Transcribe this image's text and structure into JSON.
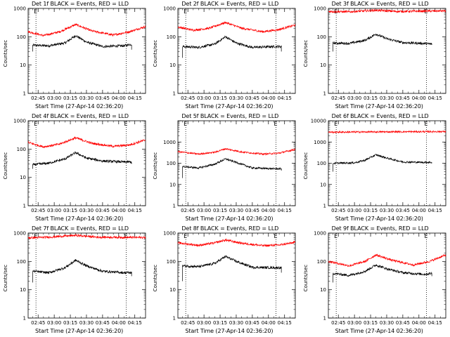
{
  "x_tick_labels": [
    "02:45",
    "03:00",
    "03:15",
    "03:30",
    "03:45",
    "04:00",
    "04:15"
  ],
  "xlabel": "Start Time (27-Apr-14 02:36:20)",
  "ylabel": "Counts/sec",
  "marker_label": "E",
  "colors": {
    "events": "#000000",
    "lld": "#ff0000",
    "background": "#ffffff"
  },
  "chart_data": [
    {
      "type": "line",
      "title": "Det 1f BLACK = Events, RED = LLD",
      "yscale": "log",
      "ylim": [
        1,
        1000
      ],
      "y_tick_labels": [
        "1",
        "10",
        "100",
        "1000"
      ],
      "xlim_min": [
        -9.3,
        100
      ],
      "event_markers_min": [
        -2,
        82
      ],
      "series": [
        {
          "name": "Events",
          "color": "#000000",
          "x_range_min": [
            -5,
            87
          ],
          "start_drop": 30,
          "end_drop": 35,
          "profile": [
            [
              -5,
              50
            ],
            [
              10,
              48
            ],
            [
              25,
              60
            ],
            [
              35,
              110
            ],
            [
              45,
              65
            ],
            [
              60,
              45
            ],
            [
              80,
              48
            ],
            [
              87,
              55
            ]
          ]
        },
        {
          "name": "LLD",
          "color": "#ff0000",
          "x_range_min": [
            -9.3,
            100
          ],
          "profile": [
            [
              -9,
              150
            ],
            [
              5,
              110
            ],
            [
              20,
              150
            ],
            [
              35,
              270
            ],
            [
              50,
              160
            ],
            [
              70,
              115
            ],
            [
              85,
              150
            ],
            [
              100,
              230
            ]
          ]
        }
      ]
    },
    {
      "type": "line",
      "title": "Det 2f BLACK = Events, RED = LLD",
      "yscale": "log",
      "ylim": [
        1,
        1000
      ],
      "y_tick_labels": [
        "1",
        "10",
        "100",
        "1000"
      ],
      "xlim_min": [
        -9.3,
        100
      ],
      "event_markers_min": [
        -2,
        82
      ],
      "series": [
        {
          "name": "Events",
          "color": "#000000",
          "x_range_min": [
            -5,
            87
          ],
          "start_drop": 18,
          "end_drop": 30,
          "profile": [
            [
              -5,
              45
            ],
            [
              10,
              42
            ],
            [
              25,
              55
            ],
            [
              35,
              100
            ],
            [
              45,
              60
            ],
            [
              60,
              42
            ],
            [
              80,
              45
            ],
            [
              87,
              45
            ]
          ]
        },
        {
          "name": "LLD",
          "color": "#ff0000",
          "x_range_min": [
            -9.3,
            100
          ],
          "profile": [
            [
              -9,
              220
            ],
            [
              5,
              170
            ],
            [
              20,
              200
            ],
            [
              35,
              320
            ],
            [
              50,
              200
            ],
            [
              70,
              150
            ],
            [
              85,
              180
            ],
            [
              100,
              260
            ]
          ]
        }
      ]
    },
    {
      "type": "line",
      "title": "Det 3f BLACK = Events, RED = LLD",
      "yscale": "log",
      "ylim": [
        1,
        1000
      ],
      "y_tick_labels": [
        "1",
        "10",
        "100",
        "1000"
      ],
      "xlim_min": [
        -9.3,
        100
      ],
      "event_markers_min": [
        -2,
        82
      ],
      "series": [
        {
          "name": "Events",
          "color": "#000000",
          "x_range_min": [
            -5,
            87
          ],
          "start_drop": 30,
          "end_drop": 55,
          "profile": [
            [
              -5,
              60
            ],
            [
              10,
              58
            ],
            [
              25,
              75
            ],
            [
              35,
              125
            ],
            [
              45,
              85
            ],
            [
              60,
              62
            ],
            [
              80,
              58
            ],
            [
              87,
              55
            ]
          ]
        },
        {
          "name": "LLD",
          "color": "#ff0000",
          "x_range_min": [
            -9.3,
            100
          ],
          "profile": [
            [
              -9,
              780
            ],
            [
              10,
              760
            ],
            [
              35,
              860
            ],
            [
              55,
              780
            ],
            [
              100,
              820
            ]
          ]
        }
      ]
    },
    {
      "type": "line",
      "title": "Det 4f BLACK = Events, RED = LLD",
      "yscale": "log",
      "ylim": [
        1,
        1000
      ],
      "y_tick_labels": [
        "1",
        "10",
        "100",
        "1000"
      ],
      "xlim_min": [
        -9.3,
        100
      ],
      "event_markers_min": [
        -2,
        82
      ],
      "series": [
        {
          "name": "Events",
          "color": "#000000",
          "x_range_min": [
            -5,
            87
          ],
          "start_drop": 20,
          "end_drop": 30,
          "profile": [
            [
              -5,
              28
            ],
            [
              10,
              32
            ],
            [
              25,
              45
            ],
            [
              35,
              75
            ],
            [
              45,
              48
            ],
            [
              60,
              38
            ],
            [
              80,
              35
            ],
            [
              87,
              35
            ]
          ]
        },
        {
          "name": "LLD",
          "color": "#ff0000",
          "x_range_min": [
            -9.3,
            100
          ],
          "profile": [
            [
              -9,
              170
            ],
            [
              5,
              120
            ],
            [
              20,
              150
            ],
            [
              35,
              250
            ],
            [
              50,
              160
            ],
            [
              70,
              125
            ],
            [
              85,
              140
            ],
            [
              100,
              210
            ]
          ]
        }
      ]
    },
    {
      "type": "line",
      "title": "Det 5f BLACK = Events, RED = LLD",
      "yscale": "log",
      "ylim": [
        1,
        10000
      ],
      "y_tick_labels": [
        "1",
        "10",
        "100",
        "1000"
      ],
      "xlim_min": [
        -9.3,
        100
      ],
      "event_markers_min": [
        -2,
        82
      ],
      "series": [
        {
          "name": "Events",
          "color": "#000000",
          "x_range_min": [
            -5,
            87
          ],
          "start_drop": 20,
          "end_drop": 45,
          "profile": [
            [
              -5,
              70
            ],
            [
              10,
              60
            ],
            [
              25,
              90
            ],
            [
              35,
              160
            ],
            [
              45,
              110
            ],
            [
              60,
              60
            ],
            [
              80,
              55
            ],
            [
              87,
              55
            ]
          ]
        },
        {
          "name": "LLD",
          "color": "#ff0000",
          "x_range_min": [
            -9.3,
            100
          ],
          "profile": [
            [
              -9,
              350
            ],
            [
              10,
              270
            ],
            [
              25,
              330
            ],
            [
              35,
              480
            ],
            [
              50,
              340
            ],
            [
              70,
              270
            ],
            [
              85,
              300
            ],
            [
              100,
              450
            ]
          ]
        }
      ]
    },
    {
      "type": "line",
      "title": "Det 6f BLACK = Events, RED = LLD",
      "yscale": "log",
      "ylim": [
        1,
        10000
      ],
      "y_tick_labels": [
        "1",
        "10",
        "100",
        "1000",
        "10000"
      ],
      "xlim_min": [
        -9.3,
        100
      ],
      "event_markers_min": [
        -2,
        82
      ],
      "series": [
        {
          "name": "Events",
          "color": "#000000",
          "x_range_min": [
            -5,
            87
          ],
          "start_drop": 40,
          "end_drop": 100,
          "profile": [
            [
              -5,
              100
            ],
            [
              15,
              105
            ],
            [
              25,
              140
            ],
            [
              35,
              250
            ],
            [
              45,
              175
            ],
            [
              60,
              115
            ],
            [
              80,
              110
            ],
            [
              87,
              110
            ]
          ]
        },
        {
          "name": "LLD",
          "color": "#ff0000",
          "x_range_min": [
            -9.3,
            100
          ],
          "profile": [
            [
              -9,
              2900
            ],
            [
              40,
              3000
            ],
            [
              100,
              3100
            ]
          ]
        }
      ]
    },
    {
      "type": "line",
      "title": "Det 7f BLACK = Events, RED = LLD",
      "yscale": "log",
      "ylim": [
        1,
        1000
      ],
      "y_tick_labels": [
        "1",
        "10",
        "100",
        "1000"
      ],
      "xlim_min": [
        -9.3,
        100
      ],
      "event_markers_min": [
        -2,
        82
      ],
      "series": [
        {
          "name": "Events",
          "color": "#000000",
          "x_range_min": [
            -5,
            87
          ],
          "start_drop": 18,
          "end_drop": 30,
          "profile": [
            [
              -5,
              45
            ],
            [
              10,
              40
            ],
            [
              25,
              60
            ],
            [
              35,
              110
            ],
            [
              45,
              70
            ],
            [
              60,
              45
            ],
            [
              80,
              40
            ],
            [
              87,
              40
            ]
          ]
        },
        {
          "name": "LLD",
          "color": "#ff0000",
          "x_range_min": [
            -9.3,
            100
          ],
          "profile": [
            [
              -9,
              680
            ],
            [
              10,
              720
            ],
            [
              35,
              830
            ],
            [
              55,
              720
            ],
            [
              100,
              700
            ]
          ]
        }
      ]
    },
    {
      "type": "line",
      "title": "Det 8f BLACK = Events, RED = LLD",
      "yscale": "log",
      "ylim": [
        1,
        1000
      ],
      "y_tick_labels": [
        "1",
        "10",
        "100",
        "1000"
      ],
      "xlim_min": [
        -9.3,
        100
      ],
      "event_markers_min": [
        -2,
        82
      ],
      "series": [
        {
          "name": "Events",
          "color": "#000000",
          "x_range_min": [
            -5,
            87
          ],
          "start_drop": 20,
          "end_drop": 40,
          "profile": [
            [
              -5,
              70
            ],
            [
              10,
              65
            ],
            [
              25,
              85
            ],
            [
              35,
              150
            ],
            [
              45,
              100
            ],
            [
              60,
              62
            ],
            [
              80,
              60
            ],
            [
              87,
              60
            ]
          ]
        },
        {
          "name": "LLD",
          "color": "#ff0000",
          "x_range_min": [
            -9.3,
            100
          ],
          "profile": [
            [
              -9,
              450
            ],
            [
              10,
              370
            ],
            [
              25,
              450
            ],
            [
              35,
              570
            ],
            [
              50,
              440
            ],
            [
              70,
              360
            ],
            [
              85,
              380
            ],
            [
              100,
              470
            ]
          ]
        }
      ]
    },
    {
      "type": "line",
      "title": "Det 9f BLACK = Events, RED = LLD",
      "yscale": "log",
      "ylim": [
        1,
        1000
      ],
      "y_tick_labels": [
        "1",
        "10",
        "100",
        "1000"
      ],
      "xlim_min": [
        -9.3,
        100
      ],
      "event_markers_min": [
        -2,
        82
      ],
      "series": [
        {
          "name": "Events",
          "color": "#000000",
          "x_range_min": [
            -5,
            87
          ],
          "start_drop": 18,
          "end_drop": 30,
          "profile": [
            [
              -5,
              38
            ],
            [
              10,
              32
            ],
            [
              25,
              45
            ],
            [
              35,
              75
            ],
            [
              45,
              55
            ],
            [
              60,
              40
            ],
            [
              80,
              35
            ],
            [
              87,
              38
            ]
          ]
        },
        {
          "name": "LLD",
          "color": "#ff0000",
          "x_range_min": [
            -9.3,
            100
          ],
          "profile": [
            [
              -9,
              100
            ],
            [
              10,
              70
            ],
            [
              25,
              100
            ],
            [
              35,
              170
            ],
            [
              50,
              110
            ],
            [
              70,
              75
            ],
            [
              85,
              100
            ],
            [
              100,
              170
            ]
          ]
        }
      ]
    }
  ]
}
